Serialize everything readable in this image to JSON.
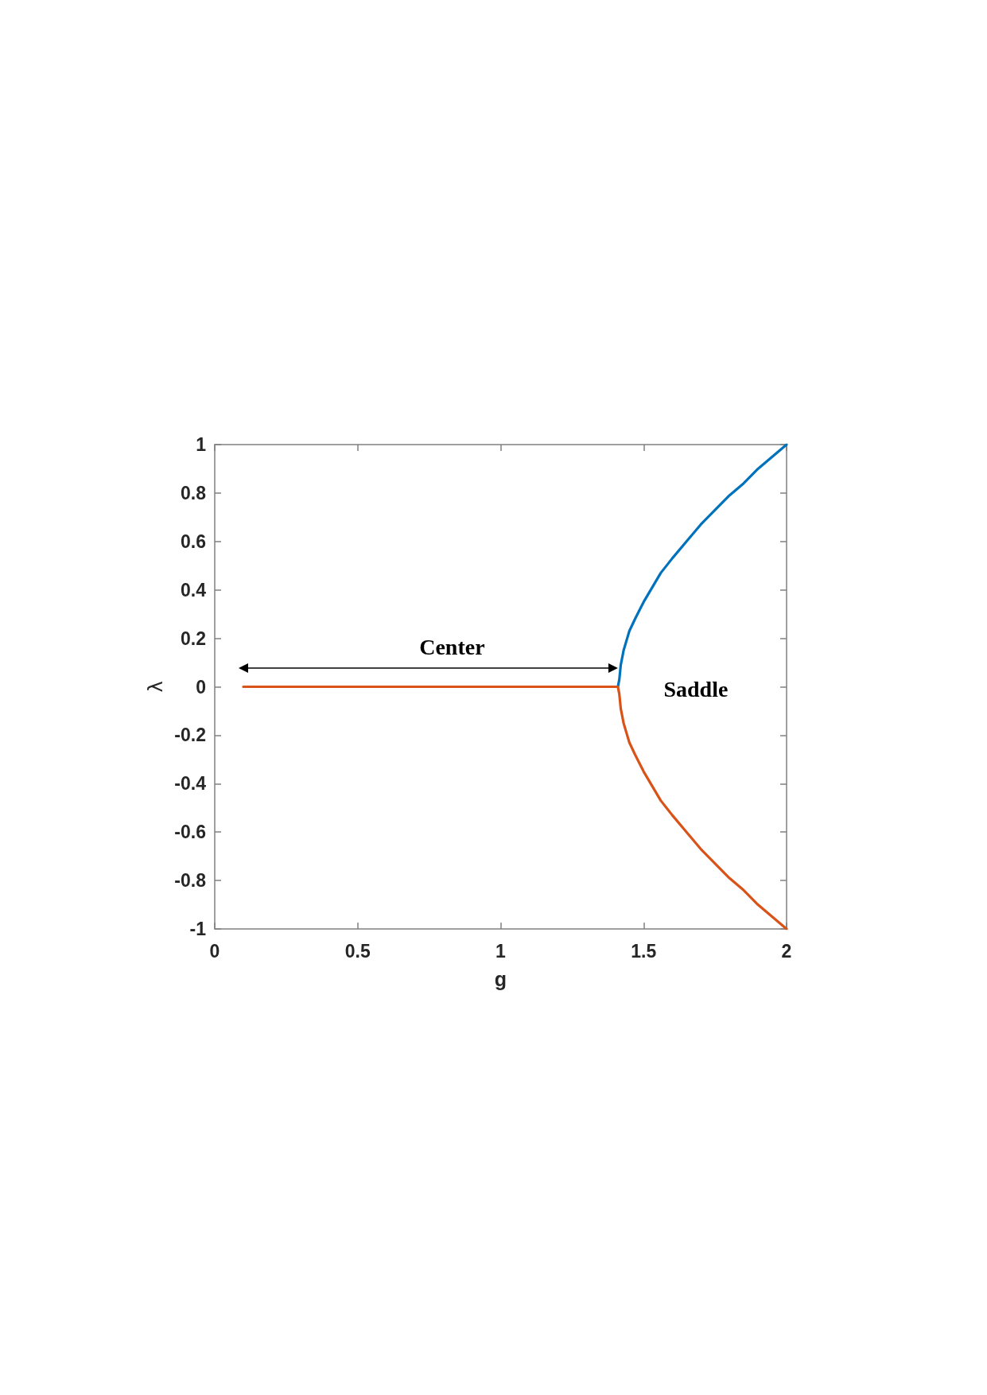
{
  "chart_data": {
    "type": "line",
    "xlabel": "g",
    "ylabel": "λ",
    "xlim": [
      0,
      2
    ],
    "xticks": [
      0,
      0.5,
      1,
      1.5,
      2
    ],
    "ylim": [
      -1,
      1
    ],
    "yticks": [
      -1,
      -0.8,
      -0.6,
      -0.4,
      -0.2,
      0,
      0.2,
      0.4,
      0.6,
      0.8,
      1
    ],
    "marker": "none",
    "line_style": "solid",
    "series": [
      {
        "color": "#0072bd",
        "x": [
          1.41,
          1.415,
          1.42,
          1.425,
          1.43,
          1.44,
          1.45,
          1.47,
          1.5,
          1.53,
          1.56,
          1.6,
          1.65,
          1.7,
          1.75,
          1.8,
          1.85,
          1.9,
          1.95,
          2
        ],
        "values": [
          0,
          0.03,
          0.09,
          0.12,
          0.15,
          0.19,
          0.23,
          0.28,
          0.35,
          0.41,
          0.47,
          0.53,
          0.6,
          0.67,
          0.73,
          0.79,
          0.84,
          0.9,
          0.95,
          1
        ]
      },
      {
        "color": "#d95319",
        "x": [
          0.1,
          1.41,
          1.415,
          1.42,
          1.425,
          1.43,
          1.44,
          1.45,
          1.47,
          1.5,
          1.53,
          1.56,
          1.6,
          1.65,
          1.7,
          1.75,
          1.8,
          1.85,
          1.9,
          1.95,
          2
        ],
        "values": [
          0,
          0,
          -0.03,
          -0.09,
          -0.12,
          -0.15,
          -0.19,
          -0.23,
          -0.28,
          -0.35,
          -0.41,
          -0.47,
          -0.53,
          -0.6,
          -0.67,
          -0.73,
          -0.79,
          -0.84,
          -0.9,
          -0.95,
          -1
        ]
      }
    ],
    "annotations": [
      "Center",
      "Saddle"
    ]
  }
}
